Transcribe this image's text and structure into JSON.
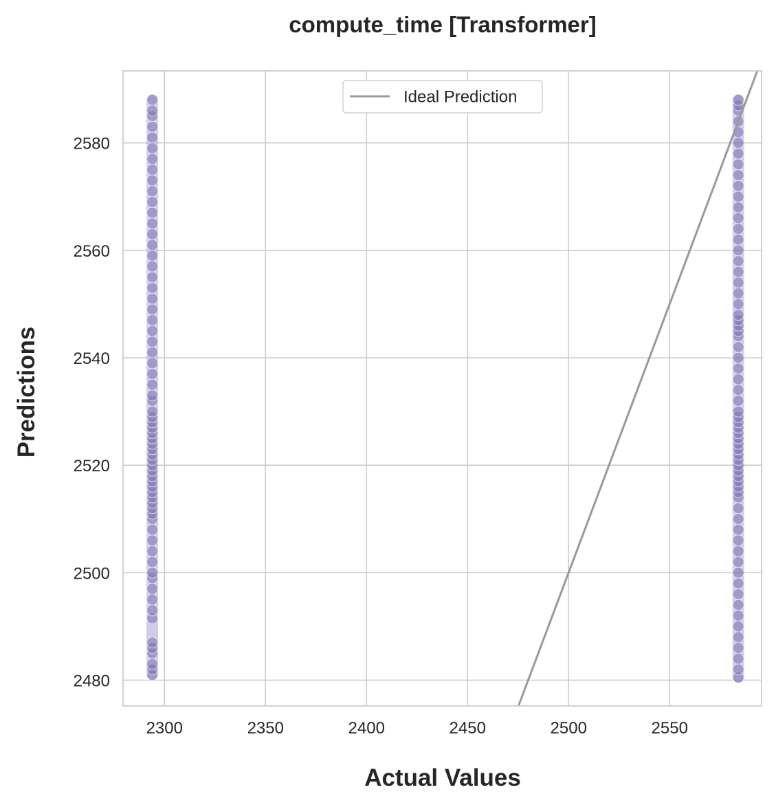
{
  "chart_data": {
    "type": "scatter",
    "title": "compute_time [Transformer]",
    "xlabel": "Actual Values",
    "ylabel": "Predictions",
    "xlim": [
      2279.5,
      2595.5
    ],
    "ylim": [
      2475.2,
      2593.4
    ],
    "xticks": [
      2300,
      2350,
      2400,
      2450,
      2500,
      2550
    ],
    "yticks": [
      2480,
      2500,
      2520,
      2540,
      2560,
      2580
    ],
    "grid": true,
    "legend": {
      "position": "top-center",
      "entries": [
        "Ideal Prediction"
      ]
    },
    "series": [
      {
        "name": "predictions",
        "kind": "scatter",
        "color": "#7a6fb5",
        "groups": [
          {
            "x": 2294,
            "y_min": 2481,
            "y_max": 2588,
            "y": [
              2481,
              2482,
              2483,
              2485,
              2486,
              2487,
              2491.5,
              2493,
              2495,
              2497,
              2499,
              2500,
              2502,
              2504,
              2506,
              2508,
              2510,
              2511,
              2512,
              2513,
              2514,
              2515,
              2516,
              2517,
              2518,
              2519,
              2520,
              2521,
              2522,
              2523,
              2524,
              2525,
              2526,
              2527,
              2528,
              2529,
              2530,
              2532,
              2533,
              2535,
              2537,
              2539,
              2541,
              2543,
              2545,
              2547,
              2549,
              2551,
              2553,
              2555,
              2557,
              2559,
              2561,
              2563,
              2565,
              2567,
              2569,
              2571,
              2573,
              2575,
              2577,
              2579,
              2581,
              2583,
              2585,
              2586,
              2588
            ]
          },
          {
            "x": 2584,
            "y_min": 2480.5,
            "y_max": 2588,
            "y": [
              2480.5,
              2482,
              2484,
              2486,
              2488,
              2490,
              2492,
              2494,
              2496,
              2498,
              2500,
              2502,
              2504,
              2506,
              2508,
              2510,
              2512,
              2514,
              2515,
              2516,
              2517,
              2518,
              2519,
              2520,
              2521,
              2522,
              2523,
              2524,
              2525,
              2526,
              2527,
              2528,
              2529,
              2530,
              2532,
              2534,
              2536,
              2538,
              2540,
              2542,
              2544,
              2545,
              2546,
              2547,
              2548,
              2550,
              2552,
              2554,
              2556,
              2558,
              2560,
              2562,
              2564,
              2566,
              2568,
              2570,
              2572,
              2574,
              2576,
              2578,
              2580,
              2582,
              2584,
              2586,
              2587,
              2588
            ]
          }
        ]
      },
      {
        "name": "Ideal Prediction",
        "kind": "line",
        "color": "#999999",
        "x": [
          2475.2,
          2593.4
        ],
        "y": [
          2475.2,
          2593.4
        ]
      }
    ]
  }
}
